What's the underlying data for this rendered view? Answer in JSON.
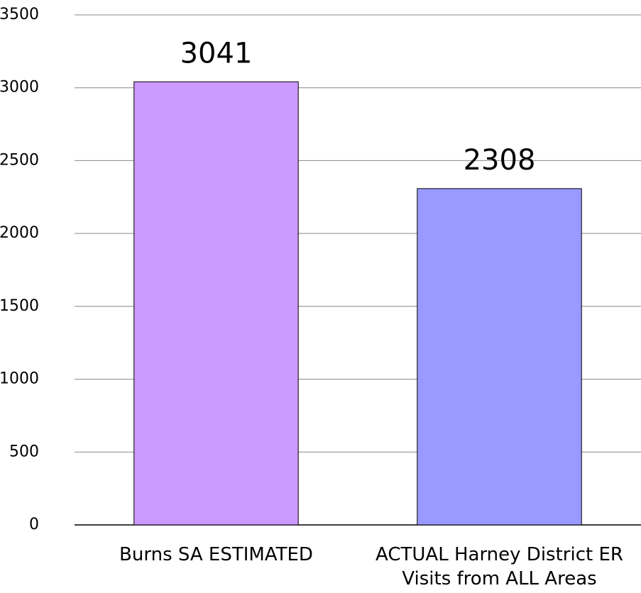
{
  "chart_data": {
    "type": "bar",
    "categories": [
      "Burns SA ESTIMATED",
      "ACTUAL Harney District ER Visits from ALL Areas"
    ],
    "values": [
      3041,
      2308
    ],
    "colors": [
      "#cc99ff",
      "#9999ff"
    ],
    "ylim": [
      0,
      3500
    ],
    "yticks": [
      0,
      500,
      1000,
      1500,
      2000,
      2500,
      3000,
      3500
    ],
    "grid": true
  }
}
